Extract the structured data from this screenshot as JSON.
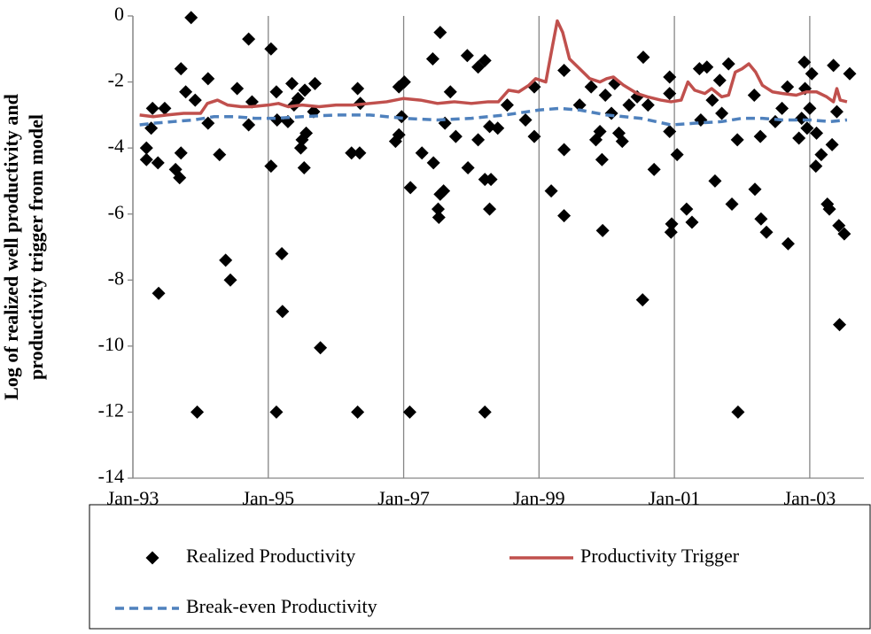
{
  "chart_data": {
    "type": "scatter",
    "ylabel": [
      "Log of realized well productivity and",
      "productivity trigger from model"
    ],
    "xlim": [
      1993,
      2003.8
    ],
    "ylim": [
      -14,
      0
    ],
    "xticks": [
      {
        "value": 1993,
        "label": "Jan-93"
      },
      {
        "value": 1995,
        "label": "Jan-95"
      },
      {
        "value": 1997,
        "label": "Jan-97"
      },
      {
        "value": 1999,
        "label": "Jan-99"
      },
      {
        "value": 2001,
        "label": "Jan-01"
      },
      {
        "value": 2003,
        "label": "Jan-03"
      }
    ],
    "yticks": [
      -14,
      -12,
      -10,
      -8,
      -6,
      -4,
      -2,
      0
    ],
    "xgrid": true,
    "legend": "bottom",
    "series": [
      {
        "name": "Realized Productivity",
        "type": "scatter",
        "color": "#000000",
        "x": [
          1993.2,
          1993.2,
          1993.27,
          1993.29,
          1993.38,
          1993.37,
          1993.47,
          1993.63,
          1993.69,
          1993.71,
          1993.71,
          1993.78,
          1993.86,
          1993.92,
          1993.95,
          1994.11,
          1994.11,
          1994.28,
          1994.37,
          1994.44,
          1994.54,
          1994.71,
          1994.71,
          1994.76,
          1995.04,
          1995.04,
          1995.12,
          1995.12,
          1995.13,
          1995.2,
          1995.21,
          1995.29,
          1995.35,
          1995.38,
          1995.44,
          1995.48,
          1995.5,
          1995.54,
          1995.56,
          1995.53,
          1995.69,
          1995.67,
          1995.77,
          1996.23,
          1996.32,
          1996.32,
          1996.35,
          1996.36,
          1996.88,
          1996.93,
          1996.93,
          1996.97,
          1997.01,
          1997.09,
          1997.1,
          1997.27,
          1997.43,
          1997.44,
          1997.51,
          1997.52,
          1997.54,
          1997.54,
          1997.59,
          1997.61,
          1997.69,
          1997.77,
          1997.94,
          1997.95,
          1998.1,
          1998.1,
          1998.2,
          1998.2,
          1998.2,
          1998.27,
          1998.27,
          1998.29,
          1998.39,
          1998.53,
          1998.8,
          1998.93,
          1998.93,
          1999.18,
          1999.37,
          1999.37,
          1999.37,
          1999.6,
          1999.77,
          1999.84,
          1999.9,
          1999.93,
          1999.94,
          1999.98,
          2000.07,
          2000.12,
          2000.18,
          2000.23,
          2000.33,
          2000.45,
          2000.53,
          2000.54,
          2000.61,
          2000.7,
          2000.93,
          2000.93,
          2000.93,
          2000.95,
          2000.96,
          2001.04,
          2001.18,
          2001.26,
          2001.37,
          2001.39,
          2001.48,
          2001.56,
          2001.6,
          2001.67,
          2001.7,
          2001.8,
          2001.85,
          2001.93,
          2001.94,
          2002.18,
          2002.19,
          2002.27,
          2002.28,
          2002.36,
          2002.49,
          2002.59,
          2002.67,
          2002.68,
          2002.84,
          2002.88,
          2002.92,
          2002.93,
          2002.96,
          2003.0,
          2003.03,
          2003.09,
          2003.1,
          2003.17,
          2003.26,
          2003.29,
          2003.33,
          2003.35,
          2003.4,
          2003.43,
          2003.44,
          2003.51,
          2003.59
        ],
        "values": [
          -4.0,
          -4.35,
          -3.4,
          -2.8,
          -8.4,
          -4.45,
          -2.8,
          -4.65,
          -4.9,
          -1.6,
          -4.15,
          -2.3,
          -0.05,
          -2.55,
          -12,
          -1.9,
          -3.25,
          -4.2,
          -7.4,
          -8.0,
          -2.2,
          -0.7,
          -3.3,
          -2.6,
          -1.0,
          -4.55,
          -2.3,
          -12,
          -3.15,
          -7.2,
          -8.95,
          -3.2,
          -2.05,
          -2.7,
          -2.5,
          -4.0,
          -3.75,
          -2.25,
          -3.55,
          -4.6,
          -2.05,
          -2.9,
          -10.05,
          -4.15,
          -2.2,
          -12,
          -4.15,
          -2.65,
          -3.8,
          -3.6,
          -2.15,
          -3.05,
          -2.0,
          -12,
          -5.2,
          -4.15,
          -1.3,
          -4.45,
          -5.85,
          -6.1,
          -0.5,
          -5.4,
          -5.3,
          -3.25,
          -2.3,
          -3.65,
          -1.2,
          -4.6,
          -1.55,
          -3.75,
          -12,
          -1.35,
          -4.95,
          -3.35,
          -5.85,
          -4.95,
          -3.4,
          -2.7,
          -3.15,
          -2.15,
          -3.65,
          -5.3,
          -1.65,
          -4.05,
          -6.05,
          -2.7,
          -2.15,
          -3.75,
          -3.5,
          -4.35,
          -6.5,
          -2.4,
          -2.95,
          -2.05,
          -3.55,
          -3.8,
          -2.7,
          -2.45,
          -8.6,
          -1.25,
          -2.7,
          -4.65,
          -1.85,
          -2.35,
          -3.5,
          -6.55,
          -6.3,
          -4.2,
          -5.85,
          -6.25,
          -1.6,
          -3.15,
          -1.55,
          -2.55,
          -5.0,
          -1.95,
          -2.95,
          -1.45,
          -5.7,
          -3.75,
          -12,
          -2.4,
          -5.25,
          -3.65,
          -6.15,
          -6.55,
          -3.2,
          -2.8,
          -2.15,
          -6.9,
          -3.7,
          -3.1,
          -1.4,
          -2.2,
          -3.4,
          -2.8,
          -1.75,
          -4.55,
          -3.55,
          -4.2,
          -5.7,
          -5.85,
          -3.9,
          -1.5,
          -2.9,
          -6.35,
          -9.35,
          -6.6,
          -1.75
        ]
      },
      {
        "name": "Productivity Trigger",
        "type": "line",
        "color": "#c0504d",
        "x": [
          1993.1,
          1993.3,
          1993.5,
          1993.75,
          1994.0,
          1994.1,
          1994.25,
          1994.4,
          1994.6,
          1994.75,
          1995.0,
          1995.15,
          1995.3,
          1995.5,
          1995.75,
          1996.0,
          1996.25,
          1996.5,
          1996.75,
          1997.0,
          1997.25,
          1997.5,
          1997.75,
          1998.0,
          1998.25,
          1998.4,
          1998.55,
          1998.7,
          1998.85,
          1998.95,
          1999.1,
          1999.2,
          1999.27,
          1999.35,
          1999.45,
          1999.6,
          1999.75,
          1999.9,
          2000.0,
          2000.1,
          2000.25,
          2000.45,
          2000.6,
          2000.8,
          2000.95,
          2001.1,
          2001.2,
          2001.3,
          2001.45,
          2001.55,
          2001.7,
          2001.8,
          2001.9,
          2002.0,
          2002.1,
          2002.2,
          2002.3,
          2002.45,
          2002.6,
          2002.8,
          2002.95,
          2003.1,
          2003.25,
          2003.35,
          2003.4,
          2003.45,
          2003.55
        ],
        "values": [
          -3.0,
          -3.05,
          -3.0,
          -2.95,
          -2.95,
          -2.65,
          -2.55,
          -2.7,
          -2.75,
          -2.75,
          -2.7,
          -2.65,
          -2.75,
          -2.7,
          -2.75,
          -2.7,
          -2.7,
          -2.65,
          -2.6,
          -2.5,
          -2.55,
          -2.65,
          -2.6,
          -2.65,
          -2.6,
          -2.6,
          -2.25,
          -2.3,
          -2.1,
          -1.9,
          -2.0,
          -0.9,
          -0.15,
          -0.5,
          -1.3,
          -1.6,
          -1.9,
          -2.0,
          -1.9,
          -1.85,
          -2.1,
          -2.35,
          -2.45,
          -2.55,
          -2.6,
          -2.55,
          -2.0,
          -2.25,
          -2.35,
          -2.2,
          -2.45,
          -2.4,
          -1.7,
          -1.6,
          -1.45,
          -1.7,
          -2.1,
          -2.3,
          -2.35,
          -2.4,
          -2.3,
          -2.3,
          -2.45,
          -2.6,
          -2.2,
          -2.55,
          -2.6
        ]
      },
      {
        "name": "Break-even Productivity",
        "type": "line",
        "dashed": true,
        "color": "#4f81bd",
        "x": [
          1993.1,
          1993.3,
          1993.6,
          1993.9,
          1994.2,
          1994.5,
          1994.8,
          1995.1,
          1995.5,
          1996.0,
          1996.5,
          1997.0,
          1997.5,
          1998.0,
          1998.5,
          1999.0,
          1999.3,
          1999.6,
          2000.0,
          2000.5,
          2000.95,
          2001.3,
          2001.7,
          2002.0,
          2002.3,
          2002.6,
          2003.0,
          2003.3,
          2003.55
        ],
        "values": [
          -3.3,
          -3.25,
          -3.2,
          -3.15,
          -3.05,
          -3.05,
          -3.1,
          -3.1,
          -3.05,
          -3.0,
          -3.0,
          -3.1,
          -3.15,
          -3.1,
          -3.0,
          -2.85,
          -2.8,
          -2.85,
          -3.0,
          -3.1,
          -3.3,
          -3.25,
          -3.2,
          -3.1,
          -3.1,
          -3.15,
          -3.15,
          -3.2,
          -3.15
        ]
      }
    ]
  }
}
